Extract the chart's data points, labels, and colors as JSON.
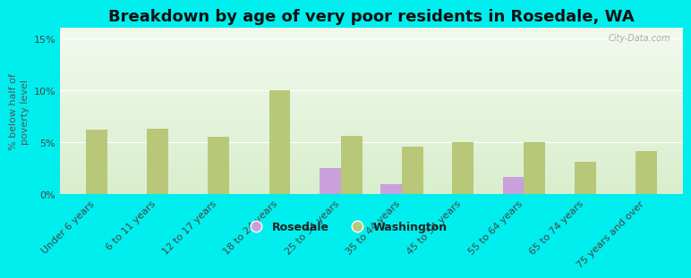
{
  "title": "Breakdown by age of very poor residents in Rosedale, WA",
  "ylabel": "% below half of\npoverty level",
  "categories": [
    "Under 6 years",
    "6 to 11 years",
    "12 to 17 years",
    "18 to 24 years",
    "25 to 34 years",
    "35 to 44 years",
    "45 to 54 years",
    "55 to 64 years",
    "65 to 74 years",
    "75 years and over"
  ],
  "rosedale": [
    0,
    0,
    0,
    0,
    2.5,
    1.0,
    0,
    1.7,
    0,
    0
  ],
  "washington": [
    6.2,
    6.3,
    5.5,
    10.0,
    5.6,
    4.6,
    5.0,
    5.0,
    3.1,
    4.2
  ],
  "rosedale_color": "#c9a0dc",
  "washington_color": "#b8c878",
  "bg_top": "#f2f9ee",
  "bg_bottom": "#d8eecc",
  "outer_bg": "#00eeee",
  "ylim": [
    0,
    16
  ],
  "yticks": [
    0,
    5,
    10,
    15
  ],
  "ytick_labels": [
    "0%",
    "5%",
    "10%",
    "15%"
  ],
  "title_fontsize": 13,
  "axis_label_fontsize": 8,
  "tick_fontsize": 8,
  "legend_fontsize": 9,
  "bar_width": 0.35,
  "watermark": "City-Data.com"
}
